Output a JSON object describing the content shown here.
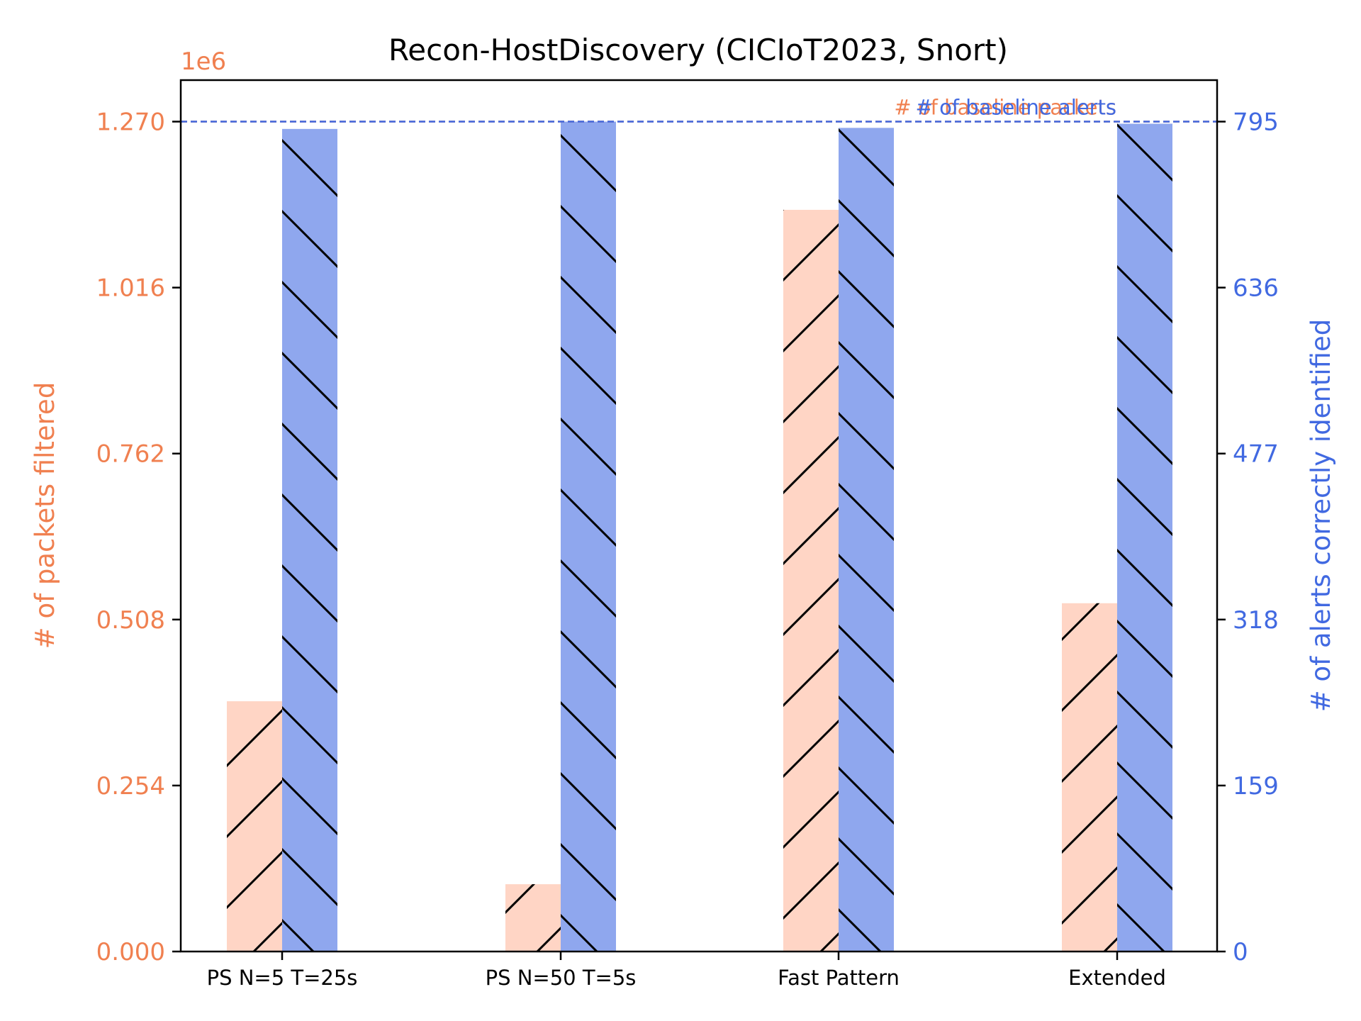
{
  "chart_data": {
    "type": "bar",
    "title": "Recon-HostDiscovery (CICIoT2023, Snort)",
    "categories": [
      "PS N=5 T=25s",
      "PS N=50 T=5s",
      "Fast Pattern",
      "Extended"
    ],
    "left_axis": {
      "label": "# of packets filtered",
      "offset_label": "1e6",
      "ticks": [
        "0.000",
        "0.254",
        "0.508",
        "0.762",
        "1.016",
        "1.270"
      ],
      "tick_values": [
        0,
        0.254,
        0.508,
        0.762,
        1.016,
        1.27
      ],
      "ylim": [
        0,
        1.3335
      ],
      "color": "#f08050"
    },
    "right_axis": {
      "label": "# of alerts correctly identified",
      "ticks": [
        "0",
        "159",
        "318",
        "477",
        "636",
        "795"
      ],
      "tick_values": [
        0,
        159,
        318,
        477,
        636,
        795
      ],
      "ylim": [
        0,
        834.75
      ],
      "color": "#4169e1"
    },
    "series": [
      {
        "axis": "left",
        "color": "#ffd5c5",
        "hatch": "forward",
        "values": [
          0.383,
          0.103,
          1.135,
          0.533
        ]
      },
      {
        "axis": "right",
        "color": "#8fa7ee",
        "hatch": "back",
        "values": [
          788,
          795,
          789,
          793
        ]
      }
    ],
    "reference_lines": [
      {
        "axis": "left",
        "value": 1.27,
        "label": "# of baseline packets",
        "color": "#f08050"
      },
      {
        "axis": "right",
        "value": 795,
        "label": "# of baseline alerts",
        "color": "#4169e1"
      }
    ],
    "grid": false
  }
}
